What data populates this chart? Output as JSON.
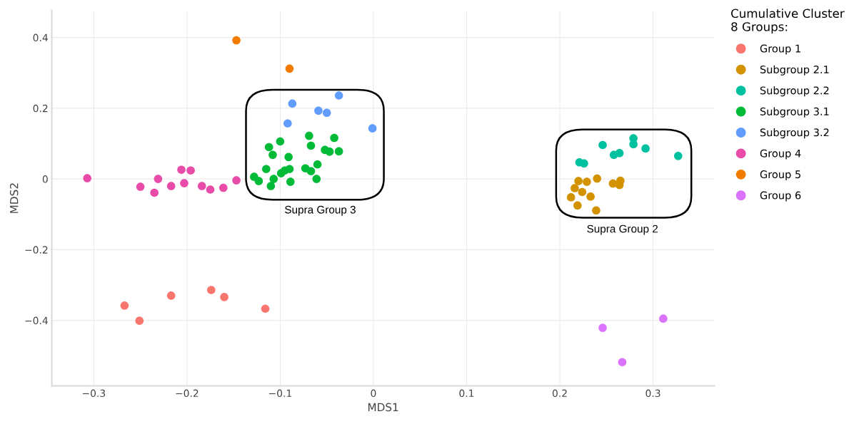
{
  "chart_data": {
    "type": "scatter",
    "xlabel": "MDS1",
    "ylabel": "MDS2",
    "legend_title": "Cumulative Cluster\n8 Groups:",
    "legend": "right",
    "grid": true,
    "marker": "circle",
    "xlim": [
      -0.345,
      0.366
    ],
    "ylim": [
      -0.585,
      0.476
    ],
    "xticks": [
      {
        "value": -0.3,
        "label": "−0.3"
      },
      {
        "value": -0.2,
        "label": "−0.2"
      },
      {
        "value": -0.1,
        "label": "−0.1"
      },
      0,
      0.1,
      0.2,
      0.3
    ],
    "yticks": [
      {
        "value": -0.4,
        "label": "−0.4"
      },
      {
        "value": -0.2,
        "label": "−0.2"
      },
      0,
      0.2,
      0.4
    ],
    "annotations": [
      "Supra Group 3",
      "Supra Group 2"
    ],
    "series": [
      {
        "name": "Group 1",
        "color": "#F8766D",
        "x": [
          -0.267,
          -0.251,
          -0.217,
          -0.174,
          -0.16,
          -0.116
        ],
        "values": [
          -0.358,
          -0.401,
          -0.33,
          -0.314,
          -0.334,
          -0.367
        ]
      },
      {
        "name": "Subgroup 2.1",
        "color": "#D39200",
        "x": [
          0.22,
          0.229,
          0.24,
          0.257,
          0.265,
          0.264,
          0.216,
          0.224,
          0.233,
          0.212,
          0.219,
          0.239
        ],
        "values": [
          -0.006,
          -0.008,
          0.001,
          -0.013,
          -0.005,
          -0.017,
          -0.026,
          -0.037,
          -0.05,
          -0.052,
          -0.075,
          -0.089
        ]
      },
      {
        "name": "Subgroup 2.2",
        "color": "#00C19F",
        "x": [
          0.246,
          0.279,
          0.279,
          0.292,
          0.327,
          0.258,
          0.264,
          0.221,
          0.226
        ],
        "values": [
          0.096,
          0.115,
          0.098,
          0.086,
          0.065,
          0.068,
          0.073,
          0.047,
          0.044
        ]
      },
      {
        "name": "Subgroup 3.1",
        "color": "#00BA38",
        "x": [
          -0.069,
          -0.042,
          -0.1,
          -0.112,
          -0.067,
          -0.052,
          -0.047,
          -0.037,
          -0.108,
          -0.091,
          -0.06,
          -0.115,
          -0.073,
          -0.067,
          -0.09,
          -0.095,
          -0.099,
          -0.128,
          -0.123,
          -0.107,
          -0.061,
          -0.089,
          -0.11
        ],
        "values": [
          0.122,
          0.116,
          0.106,
          0.09,
          0.094,
          0.082,
          0.077,
          0.078,
          0.068,
          0.062,
          0.041,
          0.028,
          0.03,
          0.022,
          0.028,
          0.024,
          0.016,
          0.006,
          -0.006,
          0.0,
          0.0,
          -0.008,
          -0.02
        ]
      },
      {
        "name": "Subgroup 3.2",
        "color": "#619CFF",
        "x": [
          -0.087,
          -0.037,
          -0.059,
          -0.05,
          -0.092,
          -0.001
        ],
        "values": [
          0.213,
          0.236,
          0.193,
          0.187,
          0.157,
          0.143
        ]
      },
      {
        "name": "Group 4",
        "color": "#E84CA8",
        "x": [
          -0.307,
          -0.25,
          -0.235,
          -0.231,
          -0.217,
          -0.206,
          -0.196,
          -0.203,
          -0.184,
          -0.175,
          -0.161,
          -0.147
        ],
        "values": [
          0.002,
          -0.022,
          -0.039,
          0.0,
          -0.02,
          0.026,
          0.024,
          -0.012,
          -0.02,
          -0.03,
          -0.025,
          -0.004
        ]
      },
      {
        "name": "Group 5",
        "color": "#F27B00",
        "x": [
          -0.147,
          -0.09
        ],
        "values": [
          0.392,
          0.312
        ]
      },
      {
        "name": "Group 6",
        "color": "#DB72FB",
        "x": [
          0.246,
          0.267,
          0.311
        ],
        "values": [
          -0.421,
          -0.518,
          -0.395
        ]
      }
    ]
  }
}
